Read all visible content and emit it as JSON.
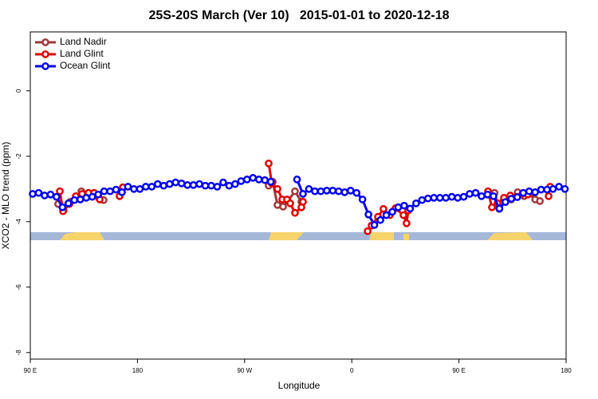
{
  "chart_data": {
    "type": "line",
    "title": "25S-20S March (Ver 10)   2015-01-01 to 2020-12-18",
    "xlabel": "Longitude",
    "ylabel": "XCO2 - MLO trend (ppm)",
    "xlim": [
      90,
      540
    ],
    "ylim": [
      -8.2,
      1.8
    ],
    "xticks": [
      {
        "value": 90,
        "label": "90 E"
      },
      180,
      {
        "value": 270,
        "label": "90 W"
      },
      {
        "value": 360,
        "label": "0"
      },
      {
        "value": 450,
        "label": "90 E"
      },
      {
        "value": 540,
        "label": "180"
      }
    ],
    "yticks": [
      0,
      -2,
      -4,
      -6,
      -8
    ],
    "legend": "top-left",
    "series": [
      {
        "name": "Land Nadir",
        "color": "#a0383a",
        "x": [
          113.4,
          118,
          123.5,
          132.9,
          138.2,
          142.9,
          147.6,
          151.6,
          null,
          290.2,
          293.6,
          297.6,
          302.3,
          306.3,
          312.3,
          317.7,
          null,
          479.9,
          483.9,
          488.6,
          494,
          499.3,
          504.7,
          510,
          514,
          518
        ],
        "values": [
          -3.46,
          -3.66,
          -3.39,
          -3.07,
          -3.22,
          -3.17,
          -3.27,
          -3.34,
          null,
          -2.9,
          -2.78,
          -3.49,
          -3.54,
          -3.37,
          -3.07,
          -3.39,
          null,
          -3.12,
          -3.61,
          -3.37,
          -3.32,
          -3.1,
          -3.22,
          -3.15,
          -3.32,
          -3.37
        ]
      },
      {
        "name": "Land Glint",
        "color": "#e00000",
        "x": [
          114.8,
          117.5,
          122.8,
          128.2,
          133.5,
          138.9,
          143.6,
          148.3,
          null,
          165,
          167.7,
          null,
          290.2,
          292.9,
          297.6,
          301.6,
          305.6,
          308.3,
          312.3,
          317.7,
          319,
          null,
          373.3,
          376.6,
          382,
          386.6,
          392,
          396.7,
          403.4,
          406,
          407.4,
          null,
          474.4,
          477.7,
          482.4,
          487.8,
          493.1,
          498.5,
          503.2,
          507.9,
          null,
          525.3,
          526.6
        ],
        "values": [
          -3.07,
          -3.68,
          -3.46,
          -3.22,
          -3.15,
          -3.12,
          -3.12,
          -3.32,
          null,
          -3.22,
          -2.95,
          null,
          -2.22,
          -2.83,
          -3.0,
          -3.32,
          -3.32,
          -3.44,
          -3.73,
          -3.56,
          -3.39,
          null,
          -4.29,
          -4.12,
          -3.85,
          -3.61,
          -3.8,
          -3.59,
          -3.8,
          -4.05,
          -3.66,
          null,
          -3.07,
          -3.56,
          -3.44,
          -3.27,
          -3.2,
          -3.24,
          -3.15,
          -3.17,
          null,
          -3.22,
          -2.93
        ]
      },
      {
        "name": "Ocean Glint",
        "color": "#0000ee",
        "x": [
          92,
          97,
          102,
          107,
          112,
          117,
          122,
          127,
          132,
          137,
          142,
          147,
          152,
          157,
          162,
          167,
          172,
          177,
          182,
          187,
          192,
          197,
          202,
          207,
          212,
          217,
          222,
          227,
          232,
          237,
          242,
          247,
          252,
          257,
          262,
          267,
          272,
          277,
          282,
          287,
          292,
          null,
          314,
          319,
          324,
          329,
          334,
          339,
          344,
          349,
          354,
          359,
          364,
          369,
          374,
          379,
          384,
          389,
          394,
          399,
          404,
          409,
          414,
          419,
          424,
          429,
          434,
          439,
          444,
          449,
          454,
          459,
          464,
          469,
          474,
          479,
          484,
          489,
          494,
          499,
          504,
          509,
          514,
          519,
          524,
          529,
          534,
          539
        ],
        "values": [
          -3.15,
          -3.12,
          -3.2,
          -3.17,
          -3.24,
          -3.56,
          -3.44,
          -3.34,
          -3.32,
          -3.27,
          -3.24,
          -3.17,
          -3.07,
          -3.07,
          -3.02,
          -3.1,
          -2.93,
          -3.0,
          -3.0,
          -2.93,
          -2.93,
          -2.85,
          -2.9,
          -2.85,
          -2.8,
          -2.83,
          -2.88,
          -2.88,
          -2.85,
          -2.9,
          -2.9,
          -2.93,
          -2.8,
          -2.9,
          -2.85,
          -2.76,
          -2.71,
          -2.66,
          -2.71,
          -2.73,
          -2.78,
          null,
          -2.71,
          -3.15,
          -3.0,
          -3.07,
          -3.07,
          -3.05,
          -3.05,
          -3.07,
          -3.1,
          -3.05,
          -3.12,
          -3.32,
          -3.78,
          -4.1,
          -3.95,
          -3.8,
          -3.7,
          -3.56,
          -3.51,
          -3.6,
          -3.44,
          -3.34,
          -3.29,
          -3.27,
          -3.27,
          -3.27,
          -3.24,
          -3.27,
          -3.24,
          -3.15,
          -3.12,
          -3.22,
          -3.17,
          -3.22,
          -3.6,
          -3.4,
          -3.3,
          -3.25,
          -3.12,
          -3.07,
          -3.1,
          -3.02,
          -3.02,
          -3.0,
          -2.93,
          -3.0
        ]
      }
    ]
  }
}
